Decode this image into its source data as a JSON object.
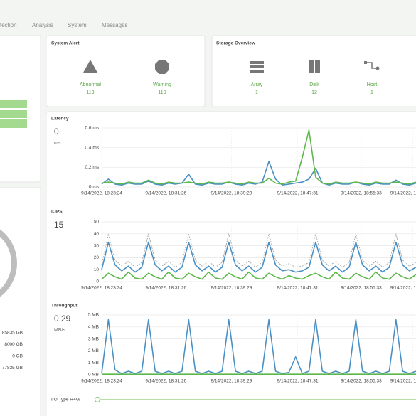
{
  "nav": [
    "tection",
    "Analysis",
    "System",
    "Messages"
  ],
  "system_alert": {
    "title": "System Alert",
    "items": [
      {
        "label": "Abnormal",
        "value": 113
      },
      {
        "label": "Warning",
        "value": 110
      }
    ]
  },
  "storage_overview": {
    "title": "Storage Overview",
    "items": [
      {
        "label": "Array",
        "value": 1
      },
      {
        "label": "Disk",
        "value": 12
      },
      {
        "label": "Host",
        "value": 1
      }
    ]
  },
  "capacity": [
    "85835 GB",
    "8000 GB",
    "0 GB",
    "77835 GB"
  ],
  "charts": [
    {
      "title": "Latency",
      "current": 0,
      "unit": "ms",
      "ylim": [
        0,
        0.6
      ],
      "yticks": [
        {
          "value": 0,
          "label": "0 ms"
        },
        {
          "value": 0.2,
          "label": "0.2 ms"
        },
        {
          "value": 0.4,
          "label": "0.4 ms"
        },
        {
          "value": 0.6,
          "label": "0.6 ms"
        }
      ],
      "xlim": [
        0,
        47
      ],
      "xticks": [
        {
          "value": 0,
          "label": "9/14/2022, 18:23:24"
        },
        {
          "value": 9.6,
          "label": "9/14/2022, 18:31:26"
        },
        {
          "value": 19.4,
          "label": "9/14/2022, 18:39:29"
        },
        {
          "value": 29.3,
          "label": "9/14/2022, 18:47:31"
        },
        {
          "value": 38.8,
          "label": "9/14/2022, 18:55:33"
        },
        {
          "value": 46.5,
          "label": "9/14/2022, 1"
        }
      ],
      "series": [
        {
          "color": "#4a90c4",
          "values": [
            0.03,
            0.08,
            0.03,
            0.02,
            0.04,
            0.03,
            0.03,
            0.06,
            0.03,
            0.02,
            0.04,
            0.03,
            0.04,
            0.13,
            0.03,
            0.02,
            0.04,
            0.03,
            0.03,
            0.05,
            0.03,
            0.02,
            0.04,
            0.03,
            0.05,
            0.26,
            0.08,
            0.02,
            0.03,
            0.04,
            0.05,
            0.08,
            0.19,
            0.04,
            0.02,
            0.04,
            0.03,
            0.03,
            0.05,
            0.03,
            0.02,
            0.04,
            0.03,
            0.03,
            0.07,
            0.03,
            0.02,
            0.04
          ]
        },
        {
          "color": "#5cb84a",
          "values": [
            0.04,
            0.05,
            0.04,
            0.03,
            0.05,
            0.04,
            0.04,
            0.07,
            0.04,
            0.03,
            0.05,
            0.04,
            0.04,
            0.05,
            0.04,
            0.03,
            0.05,
            0.04,
            0.04,
            0.05,
            0.04,
            0.03,
            0.05,
            0.04,
            0.04,
            0.09,
            0.04,
            0.03,
            0.05,
            0.06,
            0.3,
            0.58,
            0.1,
            0.04,
            0.03,
            0.05,
            0.04,
            0.04,
            0.05,
            0.04,
            0.03,
            0.05,
            0.04,
            0.04,
            0.05,
            0.04,
            0.03,
            0.05
          ]
        }
      ]
    },
    {
      "title": "IOPS",
      "current": 15,
      "ylim": [
        0,
        50
      ],
      "yticks": [
        0,
        10,
        20,
        30,
        40,
        50
      ],
      "xlim": [
        0,
        47
      ],
      "xticks": [
        {
          "value": 0,
          "label": "9/14/2022, 18:23:24"
        },
        {
          "value": 9.6,
          "label": "9/14/2022, 18:31:26"
        },
        {
          "value": 19.4,
          "label": "9/14/2022, 18:39:29"
        },
        {
          "value": 29.3,
          "label": "9/14/2022, 18:47:31"
        },
        {
          "value": 38.8,
          "label": "9/14/2022, 18:55:33"
        },
        {
          "value": 46.5,
          "label": "9/14/2022, 1"
        }
      ],
      "series": [
        {
          "color": "#999999",
          "dashed": true,
          "values": [
            14,
            40,
            18,
            13,
            17,
            12,
            16,
            40,
            18,
            13,
            17,
            12,
            16,
            40,
            18,
            13,
            17,
            12,
            16,
            40,
            18,
            13,
            17,
            12,
            16,
            40,
            18,
            13,
            15,
            12,
            13,
            16,
            40,
            18,
            13,
            17,
            12,
            16,
            40,
            18,
            13,
            17,
            12,
            16,
            40,
            18,
            13,
            16
          ]
        },
        {
          "color": "#4a90c4",
          "values": [
            10,
            33,
            14,
            9,
            13,
            8,
            12,
            33,
            14,
            9,
            13,
            8,
            12,
            33,
            14,
            9,
            13,
            8,
            12,
            33,
            14,
            9,
            13,
            8,
            12,
            33,
            14,
            9,
            10,
            8,
            9,
            12,
            33,
            14,
            9,
            13,
            8,
            12,
            33,
            14,
            9,
            13,
            8,
            12,
            33,
            14,
            9,
            12
          ]
        },
        {
          "color": "#5cb84a",
          "values": [
            2,
            7,
            4,
            2,
            8,
            3,
            2,
            7,
            4,
            2,
            8,
            3,
            2,
            7,
            4,
            2,
            8,
            3,
            2,
            7,
            4,
            2,
            8,
            3,
            2,
            7,
            4,
            2,
            5,
            3,
            2,
            5,
            7,
            4,
            2,
            8,
            3,
            2,
            7,
            4,
            2,
            8,
            3,
            2,
            7,
            4,
            2,
            6
          ]
        }
      ]
    },
    {
      "title": "Throughput",
      "current": 0.29,
      "unit": "MB/s",
      "ylim": [
        0,
        5
      ],
      "yticks": [
        {
          "value": 0,
          "label": "0 MB"
        },
        {
          "value": 1,
          "label": "1 MB"
        },
        {
          "value": 2,
          "label": "2 MB"
        },
        {
          "value": 3,
          "label": "3 MB"
        },
        {
          "value": 4,
          "label": "4 MB"
        },
        {
          "value": 5,
          "label": "5 MB"
        }
      ],
      "xlim": [
        0,
        47
      ],
      "xticks": [
        {
          "value": 0,
          "label": "9/14/2022, 18:23:24"
        },
        {
          "value": 9.6,
          "label": "9/14/2022, 18:31:26"
        },
        {
          "value": 19.4,
          "label": "9/14/2022, 18:39:29"
        },
        {
          "value": 29.3,
          "label": "9/14/2022, 18:47:31"
        },
        {
          "value": 38.8,
          "label": "9/14/2022, 18:55:33"
        },
        {
          "value": 46.5,
          "label": "9/14/2022, 1"
        }
      ],
      "series": [
        {
          "color": "#4a90c4",
          "values": [
            0.1,
            4.6,
            0.4,
            0.1,
            0.3,
            0.1,
            0.3,
            4.6,
            0.3,
            0.1,
            0.3,
            0.1,
            0.3,
            4.6,
            0.3,
            0.1,
            0.3,
            0.1,
            0.3,
            4.6,
            0.3,
            0.1,
            0.3,
            0.1,
            0.3,
            4.6,
            0.3,
            0.1,
            0.2,
            1.5,
            0.1,
            0.3,
            4.6,
            0.3,
            0.1,
            0.3,
            0.1,
            0.3,
            4.6,
            0.3,
            0.1,
            0.3,
            0.1,
            0.3,
            4.6,
            0.3,
            0.1,
            0.3
          ]
        },
        {
          "color": "#5cb84a",
          "values": [
            0.05,
            0.05,
            0.05,
            0.05,
            0.05,
            0.05,
            0.05,
            0.05,
            0.05,
            0.05,
            0.05,
            0.05,
            0.05,
            0.05,
            0.05,
            0.05,
            0.05,
            0.05,
            0.05,
            0.05,
            0.05,
            0.05,
            0.05,
            0.05,
            0.05,
            0.05,
            0.05,
            0.05,
            0.05,
            0.05,
            0.05,
            0.05,
            0.05,
            0.05,
            0.05,
            0.05,
            0.05,
            0.05,
            0.05,
            0.05,
            0.05,
            0.05,
            0.05,
            0.05,
            0.05,
            0.05,
            0.05,
            0.05
          ]
        }
      ]
    }
  ],
  "io_type": "I/O Type R+W"
}
